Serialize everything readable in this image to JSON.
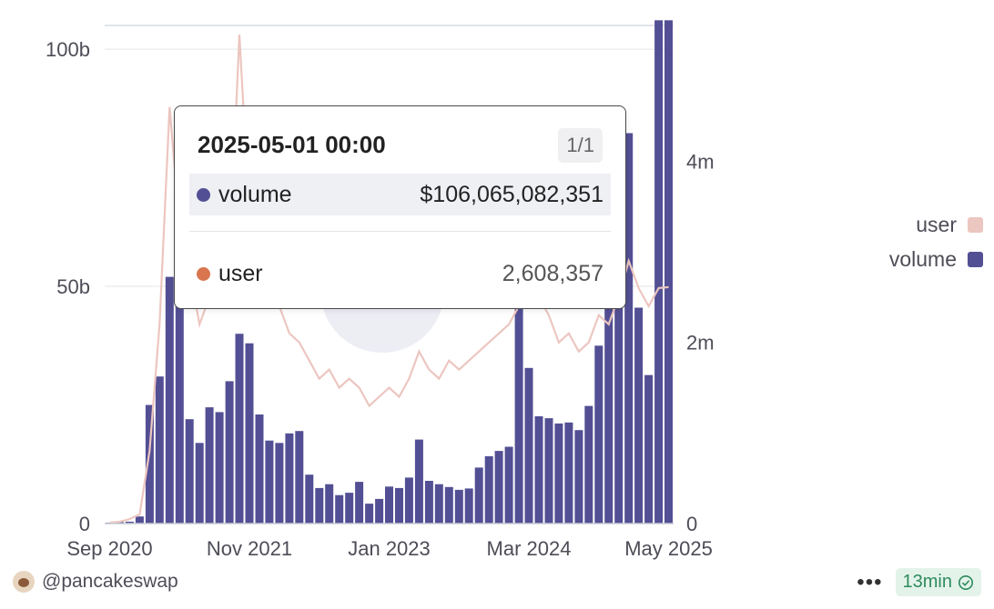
{
  "chart_data": {
    "type": "bar",
    "left_axis_ticks": [
      "0",
      "50b",
      "100b"
    ],
    "left_axis_values": [
      0,
      50000000000,
      100000000000
    ],
    "ylim_left": [
      0,
      105000000000
    ],
    "right_axis_ticks": [
      "0",
      "2m",
      "4m"
    ],
    "right_axis_values": [
      0,
      2000000,
      4000000
    ],
    "ylim_right": [
      0,
      5500000
    ],
    "x_tick_labels": [
      "Sep 2020",
      "Nov 2021",
      "Jan 2023",
      "Mar 2024",
      "May 2025"
    ],
    "x": [
      "2020-09",
      "2020-10",
      "2020-11",
      "2020-12",
      "2021-01",
      "2021-02",
      "2021-03",
      "2021-04",
      "2021-05",
      "2021-06",
      "2021-07",
      "2021-08",
      "2021-09",
      "2021-10",
      "2021-11",
      "2021-12",
      "2022-01",
      "2022-02",
      "2022-03",
      "2022-04",
      "2022-05",
      "2022-06",
      "2022-07",
      "2022-08",
      "2022-09",
      "2022-10",
      "2022-11",
      "2022-12",
      "2023-01",
      "2023-02",
      "2023-03",
      "2023-04",
      "2023-05",
      "2023-06",
      "2023-07",
      "2023-08",
      "2023-09",
      "2023-10",
      "2023-11",
      "2023-12",
      "2024-01",
      "2024-02",
      "2024-03",
      "2024-04",
      "2024-05",
      "2024-06",
      "2024-07",
      "2024-08",
      "2024-09",
      "2024-10",
      "2024-11",
      "2024-12",
      "2025-01",
      "2025-02",
      "2025-03",
      "2025-04",
      "2025-05"
    ],
    "series": [
      {
        "name": "volume",
        "axis": "left",
        "render": "bar",
        "values": [
          0.2,
          0.3,
          0.4,
          1.5,
          25,
          31,
          52,
          50,
          22,
          17,
          24.5,
          23.5,
          30,
          40,
          38,
          23,
          17.5,
          17,
          19,
          19.5,
          10.3,
          7.5,
          8.3,
          6,
          6.5,
          8.8,
          4.2,
          5.2,
          7.8,
          7.5,
          9.7,
          17.7,
          9,
          8.3,
          7.7,
          7.1,
          7.4,
          11.8,
          14.2,
          15.3,
          16.2,
          48,
          32.8,
          22.6,
          22.2,
          21.1,
          21.3,
          19.7,
          24.8,
          37.5,
          48.5,
          77.6,
          82.3,
          45.5,
          31.3,
          106.1,
          106.1
        ],
        "value_unit": "billion USD"
      },
      {
        "name": "user",
        "axis": "right",
        "render": "line",
        "values": [
          0.01,
          0.02,
          0.05,
          0.1,
          0.8,
          2.2,
          4.6,
          3.3,
          2.8,
          2.2,
          2.5,
          2.4,
          2.9,
          5.4,
          3.4,
          2.7,
          2.6,
          2.4,
          2.1,
          2.0,
          1.8,
          1.6,
          1.7,
          1.5,
          1.6,
          1.5,
          1.3,
          1.4,
          1.5,
          1.4,
          1.6,
          1.9,
          1.7,
          1.6,
          1.8,
          1.7,
          1.8,
          1.9,
          2.0,
          2.1,
          2.2,
          2.4,
          2.7,
          2.5,
          2.3,
          2.0,
          2.1,
          1.9,
          2.0,
          2.3,
          2.2,
          2.5,
          2.9,
          2.6,
          2.4,
          2.6,
          2.61
        ],
        "value_unit": "million"
      }
    ],
    "colors": {
      "volume": "#534f94",
      "user": "#ecc6c0",
      "user_dot": "#d97650"
    },
    "grid": "horizontal",
    "legend_position": "right"
  },
  "legend": [
    {
      "label": "user",
      "color": "#ecc6c0"
    },
    {
      "label": "volume",
      "color": "#534f94"
    }
  ],
  "tooltip": {
    "title": "2025-05-01 00:00",
    "pager": "1/1",
    "rows": [
      {
        "name": "volume",
        "value": "$106,065,082,351",
        "color": "#534f94"
      },
      {
        "name": "user",
        "value": "2,608,357",
        "color": "#d97650"
      }
    ]
  },
  "footer": {
    "author": "@pancakeswap",
    "more_label": "•••",
    "refresh_label": "13min"
  }
}
